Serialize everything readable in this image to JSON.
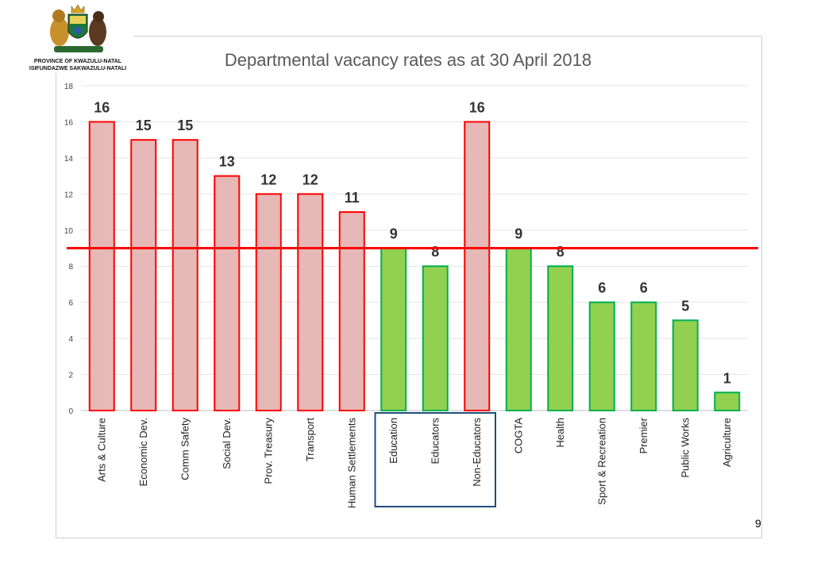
{
  "logo": {
    "caption_line1": "PROVINCE OF KWAZULU-NATAL",
    "caption_line2": "ISIFUNDAZWE SAKWAZULU-NATALI"
  },
  "page_number": "9",
  "colors": {
    "above_fill": "#e6b8b7",
    "above_stroke": "#ff0000",
    "below_fill": "#92d050",
    "below_stroke": "#00b050",
    "threshold_line": "#ff0000",
    "group_box": "#1f4e79"
  },
  "chart_data": {
    "type": "bar",
    "title": "Departmental vacancy rates as at 30 April 2018",
    "categories": [
      "Arts & Culture",
      "Economic Dev.",
      "Comm Safety",
      "Social Dev.",
      "Prov. Treasury",
      "Transport",
      "Human Settlements",
      "Education",
      "Educators",
      "Non-Educators",
      "COGTA",
      "Health",
      "Sport & Recreation",
      "Premier",
      "Public Works",
      "Agriculture"
    ],
    "values": [
      16,
      15,
      15,
      13,
      12,
      12,
      11,
      9,
      8,
      16,
      9,
      8,
      6,
      6,
      5,
      1
    ],
    "data_labels": [
      "16",
      "15",
      "15",
      "13",
      "12",
      "12",
      "11",
      "9",
      "8",
      "16",
      "9",
      "8",
      "6",
      "6",
      "5",
      "1"
    ],
    "ylim": [
      0,
      18
    ],
    "yticks": [
      0,
      2,
      4,
      6,
      8,
      10,
      12,
      14,
      16,
      18
    ],
    "threshold": 9,
    "grouped_categories": [
      "Education",
      "Educators",
      "Non-Educators"
    ],
    "grid": true,
    "xlabel": "",
    "ylabel": ""
  }
}
